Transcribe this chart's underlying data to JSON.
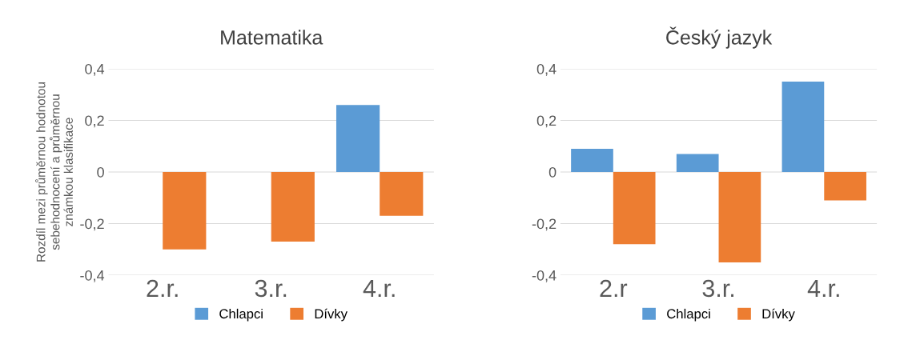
{
  "chart_data": [
    {
      "type": "bar",
      "title": "Matematika",
      "ylabel": "Rozdíl mezi průměrnou hodnotou\nsebehodnocení a průměrnou\nznámkou klasifikace",
      "categories": [
        "2.r.",
        "3.r.",
        "4.r."
      ],
      "series": [
        {
          "name": "Chlapci",
          "color": "#5b9bd5",
          "values": [
            0,
            0,
            0.26
          ]
        },
        {
          "name": "Dívky",
          "color": "#ed7d31",
          "values": [
            -0.3,
            -0.27,
            -0.17
          ]
        }
      ],
      "ylim": [
        -0.4,
        0.4
      ],
      "yticks": [
        {
          "value": -0.4,
          "label": "-0,4"
        },
        {
          "value": -0.2,
          "label": "-0,2"
        },
        0,
        {
          "value": 0.2,
          "label": "0,2"
        },
        {
          "value": 0.4,
          "label": "0,4"
        }
      ],
      "grid": "y",
      "legend": "bottom"
    },
    {
      "type": "bar",
      "title": "Český jazyk",
      "categories": [
        "2.r",
        "3.r.",
        "4.r."
      ],
      "series": [
        {
          "name": "Chlapci",
          "color": "#5b9bd5",
          "values": [
            0.09,
            0.07,
            0.35
          ]
        },
        {
          "name": "Dívky",
          "color": "#ed7d31",
          "values": [
            -0.28,
            -0.35,
            -0.11
          ]
        }
      ],
      "ylim": [
        -0.4,
        0.4
      ],
      "yticks": [
        {
          "value": -0.4,
          "label": "-0,4"
        },
        {
          "value": -0.2,
          "label": "-0,2"
        },
        0,
        {
          "value": 0.2,
          "label": "0,2"
        },
        {
          "value": 0.4,
          "label": "0,4"
        }
      ],
      "grid": "y",
      "legend": "bottom"
    }
  ]
}
